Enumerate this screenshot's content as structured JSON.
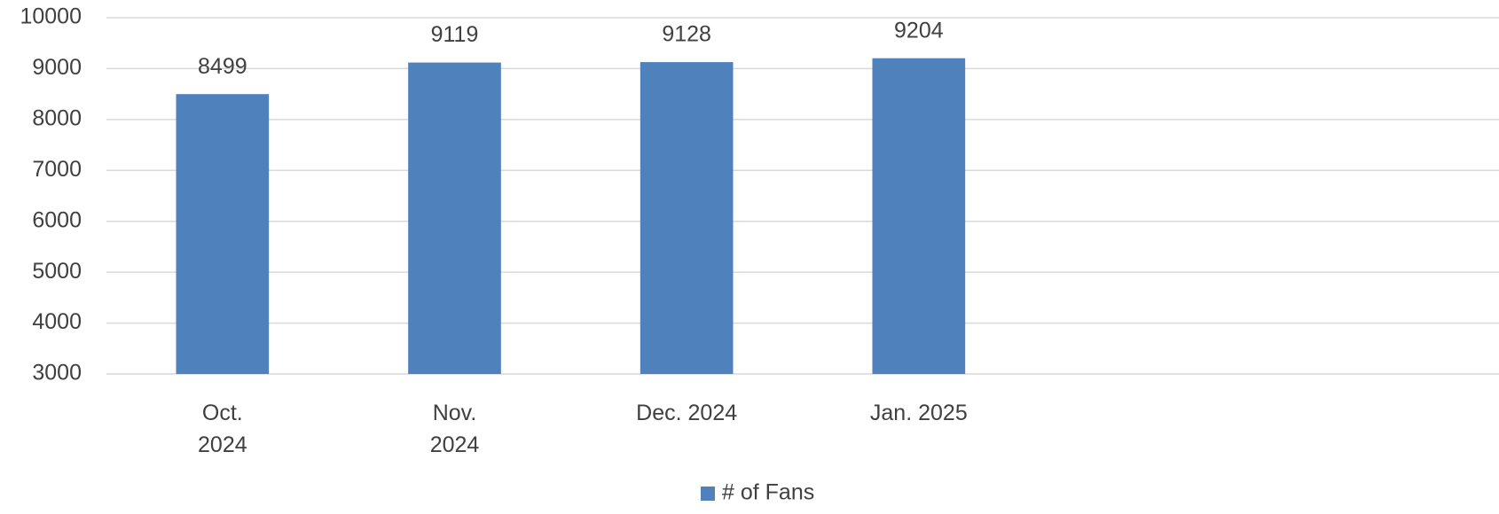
{
  "chart_data": {
    "type": "bar",
    "categories": [
      "Oct. 2024",
      "Nov. 2024",
      "Dec. 2024",
      "Jan. 2025",
      null,
      null
    ],
    "series": [
      {
        "name": "# of Fans",
        "color": "#4f81bd",
        "values": [
          8499,
          9119,
          9128,
          9204,
          null,
          null
        ]
      }
    ],
    "ylim": [
      3000,
      10000
    ],
    "yticks": [
      3000,
      4000,
      5000,
      6000,
      7000,
      8000,
      9000,
      10000
    ],
    "grid": true,
    "legend": "bottom"
  }
}
